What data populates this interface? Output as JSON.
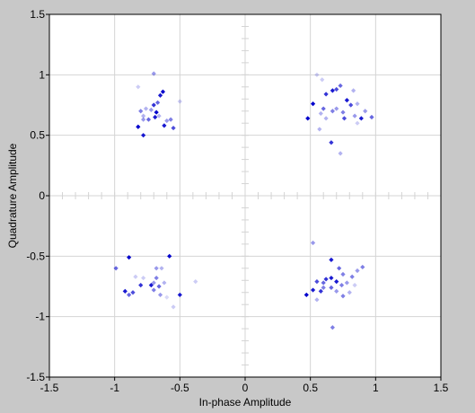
{
  "chart_data": {
    "type": "scatter",
    "title": "",
    "xlabel": "In-phase Amplitude",
    "ylabel": "Quadrature Amplitude",
    "xlim": [
      -1.5,
      1.5
    ],
    "ylim": [
      -1.5,
      1.5
    ],
    "xticks": [
      -1.5,
      -1,
      -0.5,
      0,
      0.5,
      1,
      1.5
    ],
    "yticks": [
      -1.5,
      -1,
      -0.5,
      0,
      0.5,
      1,
      1.5
    ],
    "xtick_labels": [
      "-1.5",
      "-1",
      "-0.5",
      "0",
      "0.5",
      "1",
      "1.5"
    ],
    "ytick_labels": [
      "-1.5",
      "-1",
      "-0.5",
      "0",
      "0.5",
      "1",
      "1.5"
    ],
    "grid": true,
    "legend": "none",
    "colors": {
      "figure_background": "#c8c8c8",
      "plot_background": "#ffffff",
      "grid": "#d4d4d4",
      "marker": "#0000cc"
    },
    "points": [
      {
        "x": -0.63,
        "y": 0.86,
        "o": 1.0
      },
      {
        "x": -0.65,
        "y": 0.83,
        "o": 0.9
      },
      {
        "x": -0.67,
        "y": 0.77,
        "o": 0.6
      },
      {
        "x": -0.7,
        "y": 0.75,
        "o": 0.8
      },
      {
        "x": -0.72,
        "y": 0.71,
        "o": 0.4
      },
      {
        "x": -0.76,
        "y": 0.72,
        "o": 0.3
      },
      {
        "x": -0.8,
        "y": 0.7,
        "o": 0.5
      },
      {
        "x": -0.68,
        "y": 0.69,
        "o": 1.0
      },
      {
        "x": -0.69,
        "y": 0.65,
        "o": 0.9
      },
      {
        "x": -0.74,
        "y": 0.63,
        "o": 0.6
      },
      {
        "x": -0.78,
        "y": 0.63,
        "o": 0.4
      },
      {
        "x": -0.66,
        "y": 0.66,
        "o": 0.3
      },
      {
        "x": -0.82,
        "y": 0.57,
        "o": 1.0
      },
      {
        "x": -0.78,
        "y": 0.5,
        "o": 0.9
      },
      {
        "x": -0.62,
        "y": 0.58,
        "o": 0.9
      },
      {
        "x": -0.6,
        "y": 0.62,
        "o": 0.4
      },
      {
        "x": -0.57,
        "y": 0.63,
        "o": 0.5
      },
      {
        "x": -0.55,
        "y": 0.56,
        "o": 0.7
      },
      {
        "x": -0.7,
        "y": 1.01,
        "o": 0.4
      },
      {
        "x": -0.82,
        "y": 0.9,
        "o": 0.2
      },
      {
        "x": -0.5,
        "y": 0.78,
        "o": 0.2
      },
      {
        "x": -0.78,
        "y": 0.66,
        "o": 0.3
      },
      {
        "x": 0.52,
        "y": 0.76,
        "o": 1.0
      },
      {
        "x": 0.62,
        "y": 0.84,
        "o": 0.8
      },
      {
        "x": 0.67,
        "y": 0.87,
        "o": 0.9
      },
      {
        "x": 0.7,
        "y": 0.88,
        "o": 0.7
      },
      {
        "x": 0.73,
        "y": 0.91,
        "o": 0.6
      },
      {
        "x": 0.55,
        "y": 1.0,
        "o": 0.2
      },
      {
        "x": 0.59,
        "y": 0.96,
        "o": 0.2
      },
      {
        "x": 0.78,
        "y": 0.79,
        "o": 0.9
      },
      {
        "x": 0.81,
        "y": 0.75,
        "o": 0.7
      },
      {
        "x": 0.86,
        "y": 0.76,
        "o": 0.3
      },
      {
        "x": 0.83,
        "y": 0.87,
        "o": 0.3
      },
      {
        "x": 0.75,
        "y": 0.69,
        "o": 0.5
      },
      {
        "x": 0.7,
        "y": 0.72,
        "o": 0.4
      },
      {
        "x": 0.67,
        "y": 0.7,
        "o": 0.5
      },
      {
        "x": 0.6,
        "y": 0.72,
        "o": 0.6
      },
      {
        "x": 0.58,
        "y": 0.68,
        "o": 0.3
      },
      {
        "x": 0.48,
        "y": 0.64,
        "o": 1.0
      },
      {
        "x": 0.62,
        "y": 0.64,
        "o": 0.3
      },
      {
        "x": 0.76,
        "y": 0.64,
        "o": 0.7
      },
      {
        "x": 0.84,
        "y": 0.66,
        "o": 0.4
      },
      {
        "x": 0.89,
        "y": 0.64,
        "o": 0.9
      },
      {
        "x": 0.97,
        "y": 0.65,
        "o": 0.6
      },
      {
        "x": 0.92,
        "y": 0.7,
        "o": 0.4
      },
      {
        "x": 0.57,
        "y": 0.55,
        "o": 0.3
      },
      {
        "x": 0.66,
        "y": 0.44,
        "o": 0.8
      },
      {
        "x": 0.73,
        "y": 0.35,
        "o": 0.3
      },
      {
        "x": 0.86,
        "y": 0.6,
        "o": 0.2
      },
      {
        "x": -0.89,
        "y": -0.51,
        "o": 1.0
      },
      {
        "x": -0.58,
        "y": -0.5,
        "o": 1.0
      },
      {
        "x": -0.99,
        "y": -0.6,
        "o": 0.6
      },
      {
        "x": -0.92,
        "y": -0.79,
        "o": 0.9
      },
      {
        "x": -0.86,
        "y": -0.8,
        "o": 0.7
      },
      {
        "x": -0.89,
        "y": -0.82,
        "o": 0.6
      },
      {
        "x": -0.8,
        "y": -0.74,
        "o": 0.8
      },
      {
        "x": -0.72,
        "y": -0.74,
        "o": 0.9
      },
      {
        "x": -0.68,
        "y": -0.68,
        "o": 0.5
      },
      {
        "x": -0.7,
        "y": -0.72,
        "o": 0.4
      },
      {
        "x": -0.66,
        "y": -0.75,
        "o": 0.6
      },
      {
        "x": -0.7,
        "y": -0.78,
        "o": 0.5
      },
      {
        "x": -0.65,
        "y": -0.82,
        "o": 0.4
      },
      {
        "x": -0.62,
        "y": -0.72,
        "o": 0.3
      },
      {
        "x": -0.68,
        "y": -0.6,
        "o": 0.4
      },
      {
        "x": -0.64,
        "y": -0.6,
        "o": 0.3
      },
      {
        "x": -0.78,
        "y": -0.68,
        "o": 0.2
      },
      {
        "x": -0.84,
        "y": -0.67,
        "o": 0.2
      },
      {
        "x": -0.5,
        "y": -0.82,
        "o": 0.9
      },
      {
        "x": -0.38,
        "y": -0.71,
        "o": 0.2
      },
      {
        "x": -0.55,
        "y": -0.92,
        "o": 0.2
      },
      {
        "x": -0.6,
        "y": -0.84,
        "o": 0.15
      },
      {
        "x": 0.52,
        "y": -0.39,
        "o": 0.4
      },
      {
        "x": 0.66,
        "y": -0.53,
        "o": 0.9
      },
      {
        "x": 0.72,
        "y": -0.6,
        "o": 0.6
      },
      {
        "x": 0.75,
        "y": -0.65,
        "o": 0.5
      },
      {
        "x": 0.62,
        "y": -0.69,
        "o": 0.8
      },
      {
        "x": 0.66,
        "y": -0.68,
        "o": 0.9
      },
      {
        "x": 0.55,
        "y": -0.71,
        "o": 0.7
      },
      {
        "x": 0.6,
        "y": -0.72,
        "o": 0.6
      },
      {
        "x": 0.7,
        "y": -0.71,
        "o": 0.9
      },
      {
        "x": 0.74,
        "y": -0.74,
        "o": 0.5
      },
      {
        "x": 0.78,
        "y": -0.72,
        "o": 0.4
      },
      {
        "x": 0.82,
        "y": -0.67,
        "o": 0.5
      },
      {
        "x": 0.86,
        "y": -0.62,
        "o": 0.4
      },
      {
        "x": 0.9,
        "y": -0.59,
        "o": 0.5
      },
      {
        "x": 0.58,
        "y": -0.79,
        "o": 0.8
      },
      {
        "x": 0.6,
        "y": -0.76,
        "o": 0.5
      },
      {
        "x": 0.66,
        "y": -0.76,
        "o": 0.6
      },
      {
        "x": 0.7,
        "y": -0.79,
        "o": 0.4
      },
      {
        "x": 0.75,
        "y": -0.83,
        "o": 0.5
      },
      {
        "x": 0.52,
        "y": -0.78,
        "o": 0.9
      },
      {
        "x": 0.47,
        "y": -0.82,
        "o": 1.0
      },
      {
        "x": 0.55,
        "y": -0.86,
        "o": 0.3
      },
      {
        "x": 0.67,
        "y": -1.09,
        "o": 0.5
      },
      {
        "x": 0.8,
        "y": -0.8,
        "o": 0.3
      },
      {
        "x": 0.84,
        "y": -0.74,
        "o": 0.2
      }
    ]
  }
}
